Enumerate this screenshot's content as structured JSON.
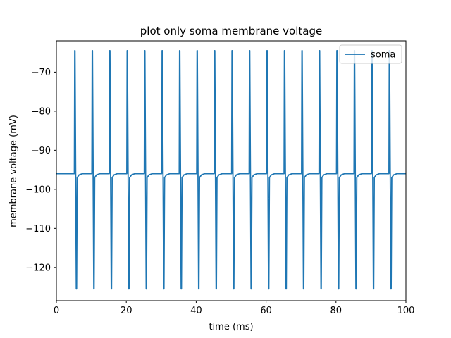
{
  "chart_data": {
    "type": "line",
    "title": "plot only soma membrane voltage",
    "xlabel": "time (ms)",
    "ylabel": "membrane voltage (mV)",
    "xlim": [
      0,
      100
    ],
    "ylim": [
      -128.5,
      -62
    ],
    "xticks": [
      0,
      20,
      40,
      60,
      80,
      100
    ],
    "yticks": [
      -120,
      -110,
      -100,
      -90,
      -80,
      -70
    ],
    "grid": false,
    "legend_position": "top-right",
    "series": [
      {
        "name": "soma",
        "color": "#1f77b4",
        "resting_voltage": -96,
        "spike_peak": -64.5,
        "spike_trough": -125.5,
        "after_hyperpolarization": -97,
        "spike_times": [
          5.2,
          10.2,
          15.2,
          20.2,
          25.2,
          30.2,
          35.2,
          40.2,
          45.2,
          50.2,
          55.2,
          60.2,
          65.2,
          70.2,
          75.2,
          80.2,
          85.2,
          90.2,
          95.2
        ]
      }
    ]
  }
}
